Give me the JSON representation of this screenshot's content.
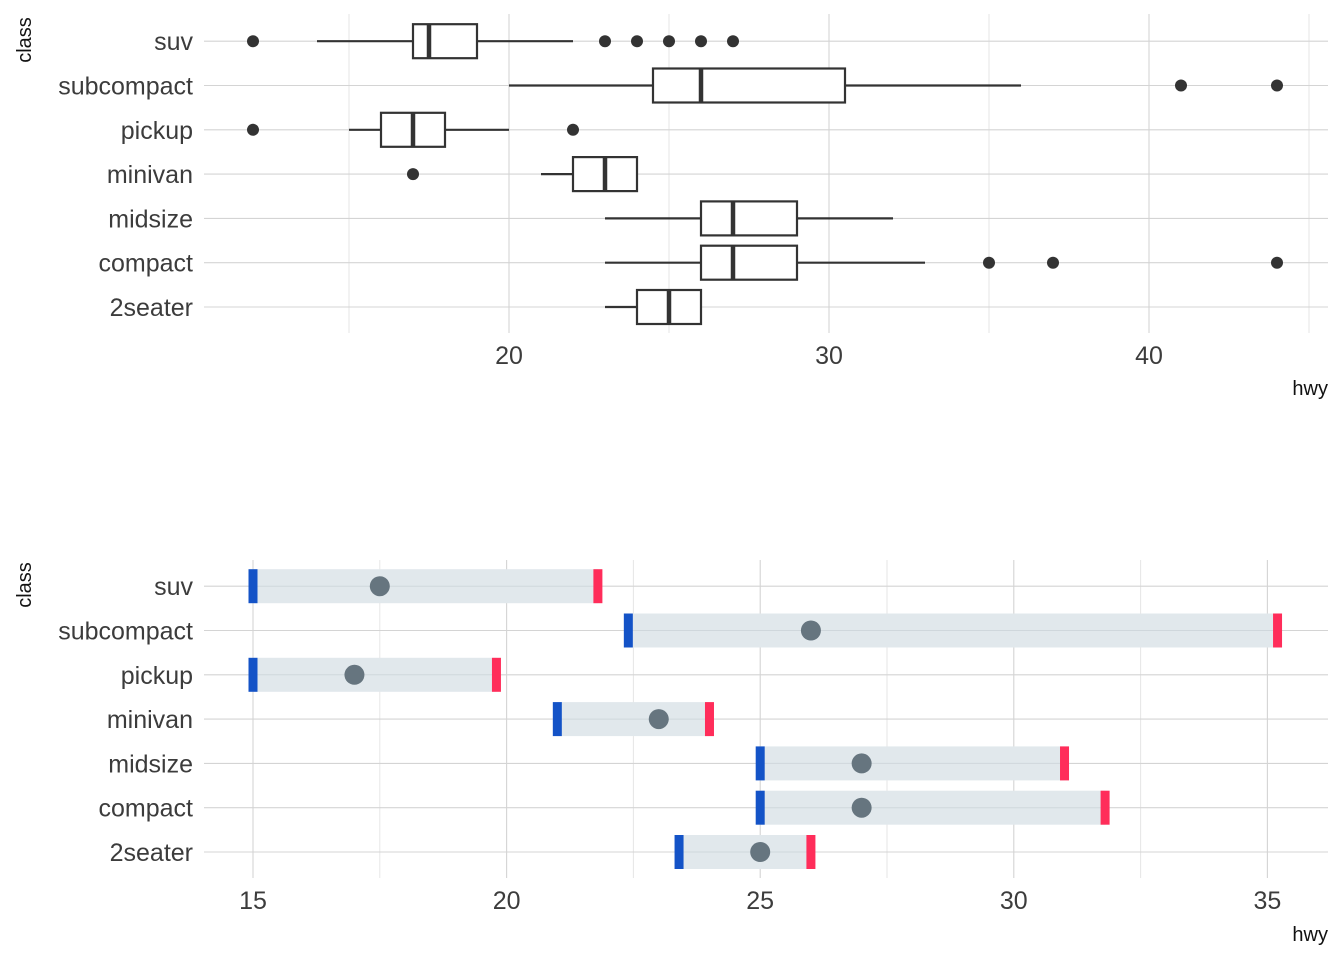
{
  "chart_data": [
    {
      "type": "boxplot",
      "orientation": "horizontal",
      "xlabel": "hwy",
      "ylabel": "class",
      "xlim": [
        11,
        45.5
      ],
      "xticks": [
        20,
        30,
        40
      ],
      "xtick_labels": [
        "20",
        "30",
        "40"
      ],
      "categories": [
        "2seater",
        "compact",
        "midsize",
        "minivan",
        "pickup",
        "subcompact",
        "suv"
      ],
      "colors": {
        "box": "#333333",
        "outlier": "#333333"
      },
      "boxes": [
        {
          "label": "2seater",
          "whisker_low": 23,
          "q1": 24,
          "median": 25,
          "q3": 26,
          "whisker_high": 26,
          "outliers": []
        },
        {
          "label": "compact",
          "whisker_low": 23,
          "q1": 26,
          "median": 27,
          "q3": 29,
          "whisker_high": 33,
          "outliers": [
            35,
            37,
            44
          ]
        },
        {
          "label": "midsize",
          "whisker_low": 23,
          "q1": 26,
          "median": 27,
          "q3": 29,
          "whisker_high": 32,
          "outliers": []
        },
        {
          "label": "minivan",
          "whisker_low": 21,
          "q1": 22,
          "median": 23,
          "q3": 24,
          "whisker_high": 24,
          "outliers": [
            17
          ]
        },
        {
          "label": "pickup",
          "whisker_low": 15,
          "q1": 16,
          "median": 17,
          "q3": 18,
          "whisker_high": 20,
          "outliers": [
            12,
            22
          ]
        },
        {
          "label": "subcompact",
          "whisker_low": 20,
          "q1": 24.5,
          "median": 26,
          "q3": 30.5,
          "whisker_high": 36,
          "outliers": [
            41,
            44
          ]
        },
        {
          "label": "suv",
          "whisker_low": 14,
          "q1": 17,
          "median": 17.5,
          "q3": 19,
          "whisker_high": 22,
          "outliers": [
            12,
            23,
            24,
            25,
            26,
            27
          ]
        }
      ]
    },
    {
      "type": "range",
      "orientation": "horizontal",
      "xlabel": "hwy",
      "ylabel": "class",
      "xlim": [
        14.2,
        36.2
      ],
      "xticks": [
        15,
        20,
        25,
        30,
        35
      ],
      "xtick_labels": [
        "15",
        "20",
        "25",
        "30",
        "35"
      ],
      "categories": [
        "2seater",
        "compact",
        "midsize",
        "minivan",
        "pickup",
        "subcompact",
        "suv"
      ],
      "colors": {
        "band": "#e1e8ec",
        "low_marker": "#1453c7",
        "high_marker": "#ff2d5a",
        "median_point": "#66757f"
      },
      "ranges": [
        {
          "label": "2seater",
          "low": 23.4,
          "median": 25,
          "high": 26
        },
        {
          "label": "compact",
          "low": 25,
          "median": 27,
          "high": 31.8
        },
        {
          "label": "midsize",
          "low": 25,
          "median": 27,
          "high": 31
        },
        {
          "label": "minivan",
          "low": 21,
          "median": 23,
          "high": 24
        },
        {
          "label": "pickup",
          "low": 15,
          "median": 17,
          "high": 19.8
        },
        {
          "label": "subcompact",
          "low": 22.4,
          "median": 26,
          "high": 35.2
        },
        {
          "label": "suv",
          "low": 15,
          "median": 17.5,
          "high": 21.8
        }
      ]
    }
  ]
}
